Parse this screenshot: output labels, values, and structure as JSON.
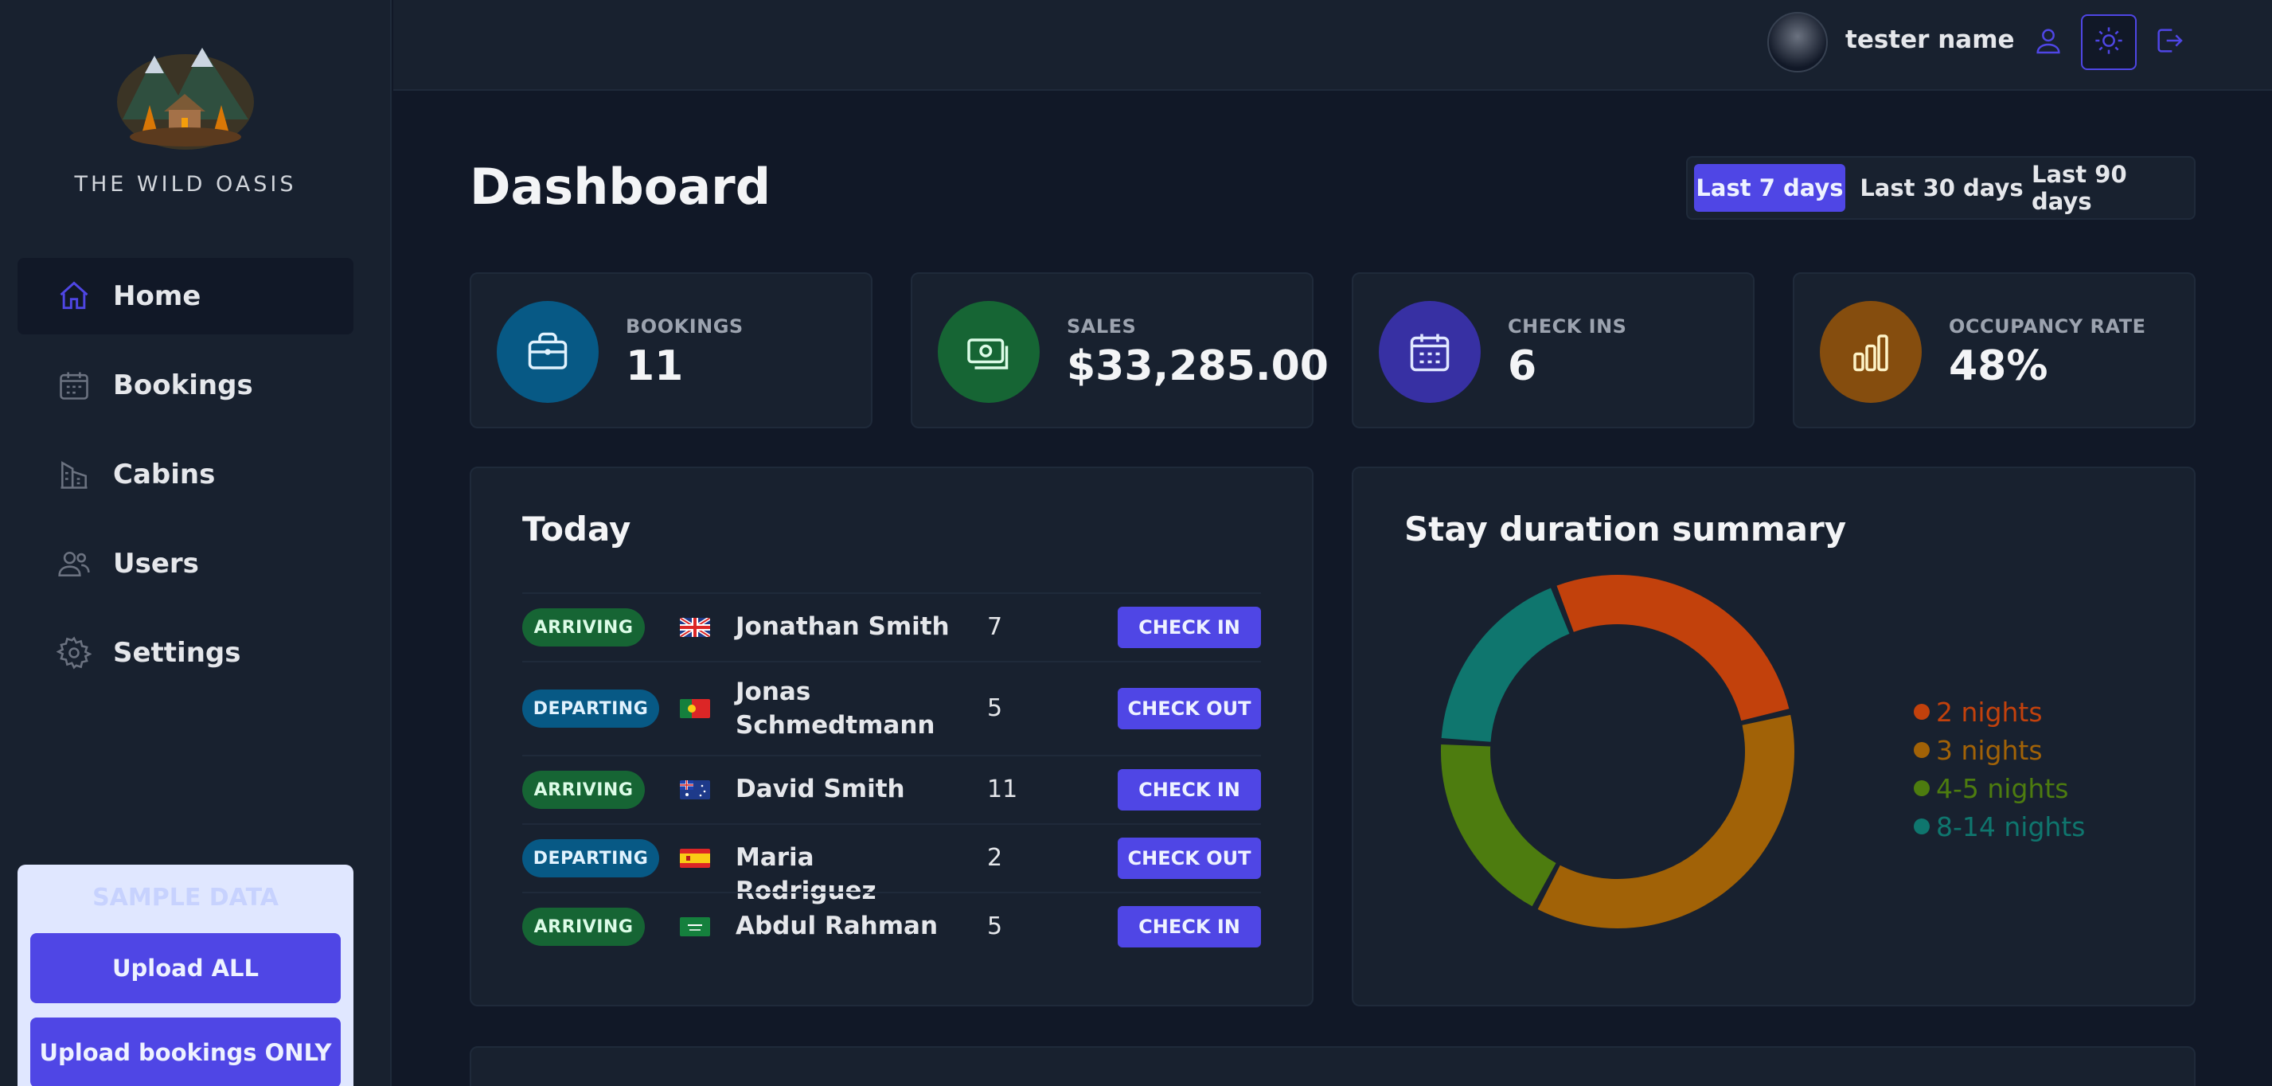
{
  "brand": {
    "name": "THE WILD OASIS"
  },
  "sidebar": {
    "items": [
      {
        "label": "Home",
        "icon": "home-icon",
        "active": true
      },
      {
        "label": "Bookings",
        "icon": "calendar-icon"
      },
      {
        "label": "Cabins",
        "icon": "building-icon"
      },
      {
        "label": "Users",
        "icon": "users-icon"
      },
      {
        "label": "Settings",
        "icon": "gear-icon"
      }
    ],
    "sample": {
      "title": "SAMPLE DATA",
      "upload_all": "Upload ALL",
      "upload_bookings": "Upload bookings ONLY"
    }
  },
  "header": {
    "user_name": "tester name"
  },
  "dashboard": {
    "title": "Dashboard",
    "filters": [
      "Last 7 days",
      "Last 30 days",
      "Last 90 days"
    ],
    "active_filter": "Last 7 days"
  },
  "stats": [
    {
      "label": "BOOKINGS",
      "value": "11",
      "color": "#075985",
      "icon": "briefcase-icon"
    },
    {
      "label": "SALES",
      "value": "$33,285.00",
      "color": "#166534",
      "icon": "banknotes-icon"
    },
    {
      "label": "CHECK INS",
      "value": "6",
      "color": "#3730a3",
      "icon": "calendar-days-icon"
    },
    {
      "label": "OCCUPANCY RATE",
      "value": "48%",
      "color": "#854d0e",
      "icon": "chart-bar-icon"
    }
  ],
  "today": {
    "title": "Today",
    "rows": [
      {
        "status": "ARRIVING",
        "flag": "uk",
        "name": "Jonathan Smith",
        "nights": "7",
        "action": "CHECK IN"
      },
      {
        "status": "DEPARTING",
        "flag": "pt",
        "name": "Jonas Schmedtmann",
        "nights": "5",
        "action": "CHECK OUT"
      },
      {
        "status": "ARRIVING",
        "flag": "au",
        "name": "David Smith",
        "nights": "11",
        "action": "CHECK IN"
      },
      {
        "status": "DEPARTING",
        "flag": "es",
        "name": "Maria Rodriguez",
        "nights": "2",
        "action": "CHECK OUT"
      },
      {
        "status": "ARRIVING",
        "flag": "sa",
        "name": "Abdul Rahman",
        "nights": "5",
        "action": "CHECK IN"
      }
    ]
  },
  "chart_data": {
    "type": "pie",
    "title": "Stay duration summary",
    "categories": [
      "2 nights",
      "3 nights",
      "4-5 nights",
      "8-14 nights"
    ],
    "values": [
      3,
      4,
      2,
      2
    ],
    "colors": [
      "#c2410c",
      "#a16207",
      "#4d7c0f",
      "#0f766e"
    ],
    "legend": "right"
  }
}
